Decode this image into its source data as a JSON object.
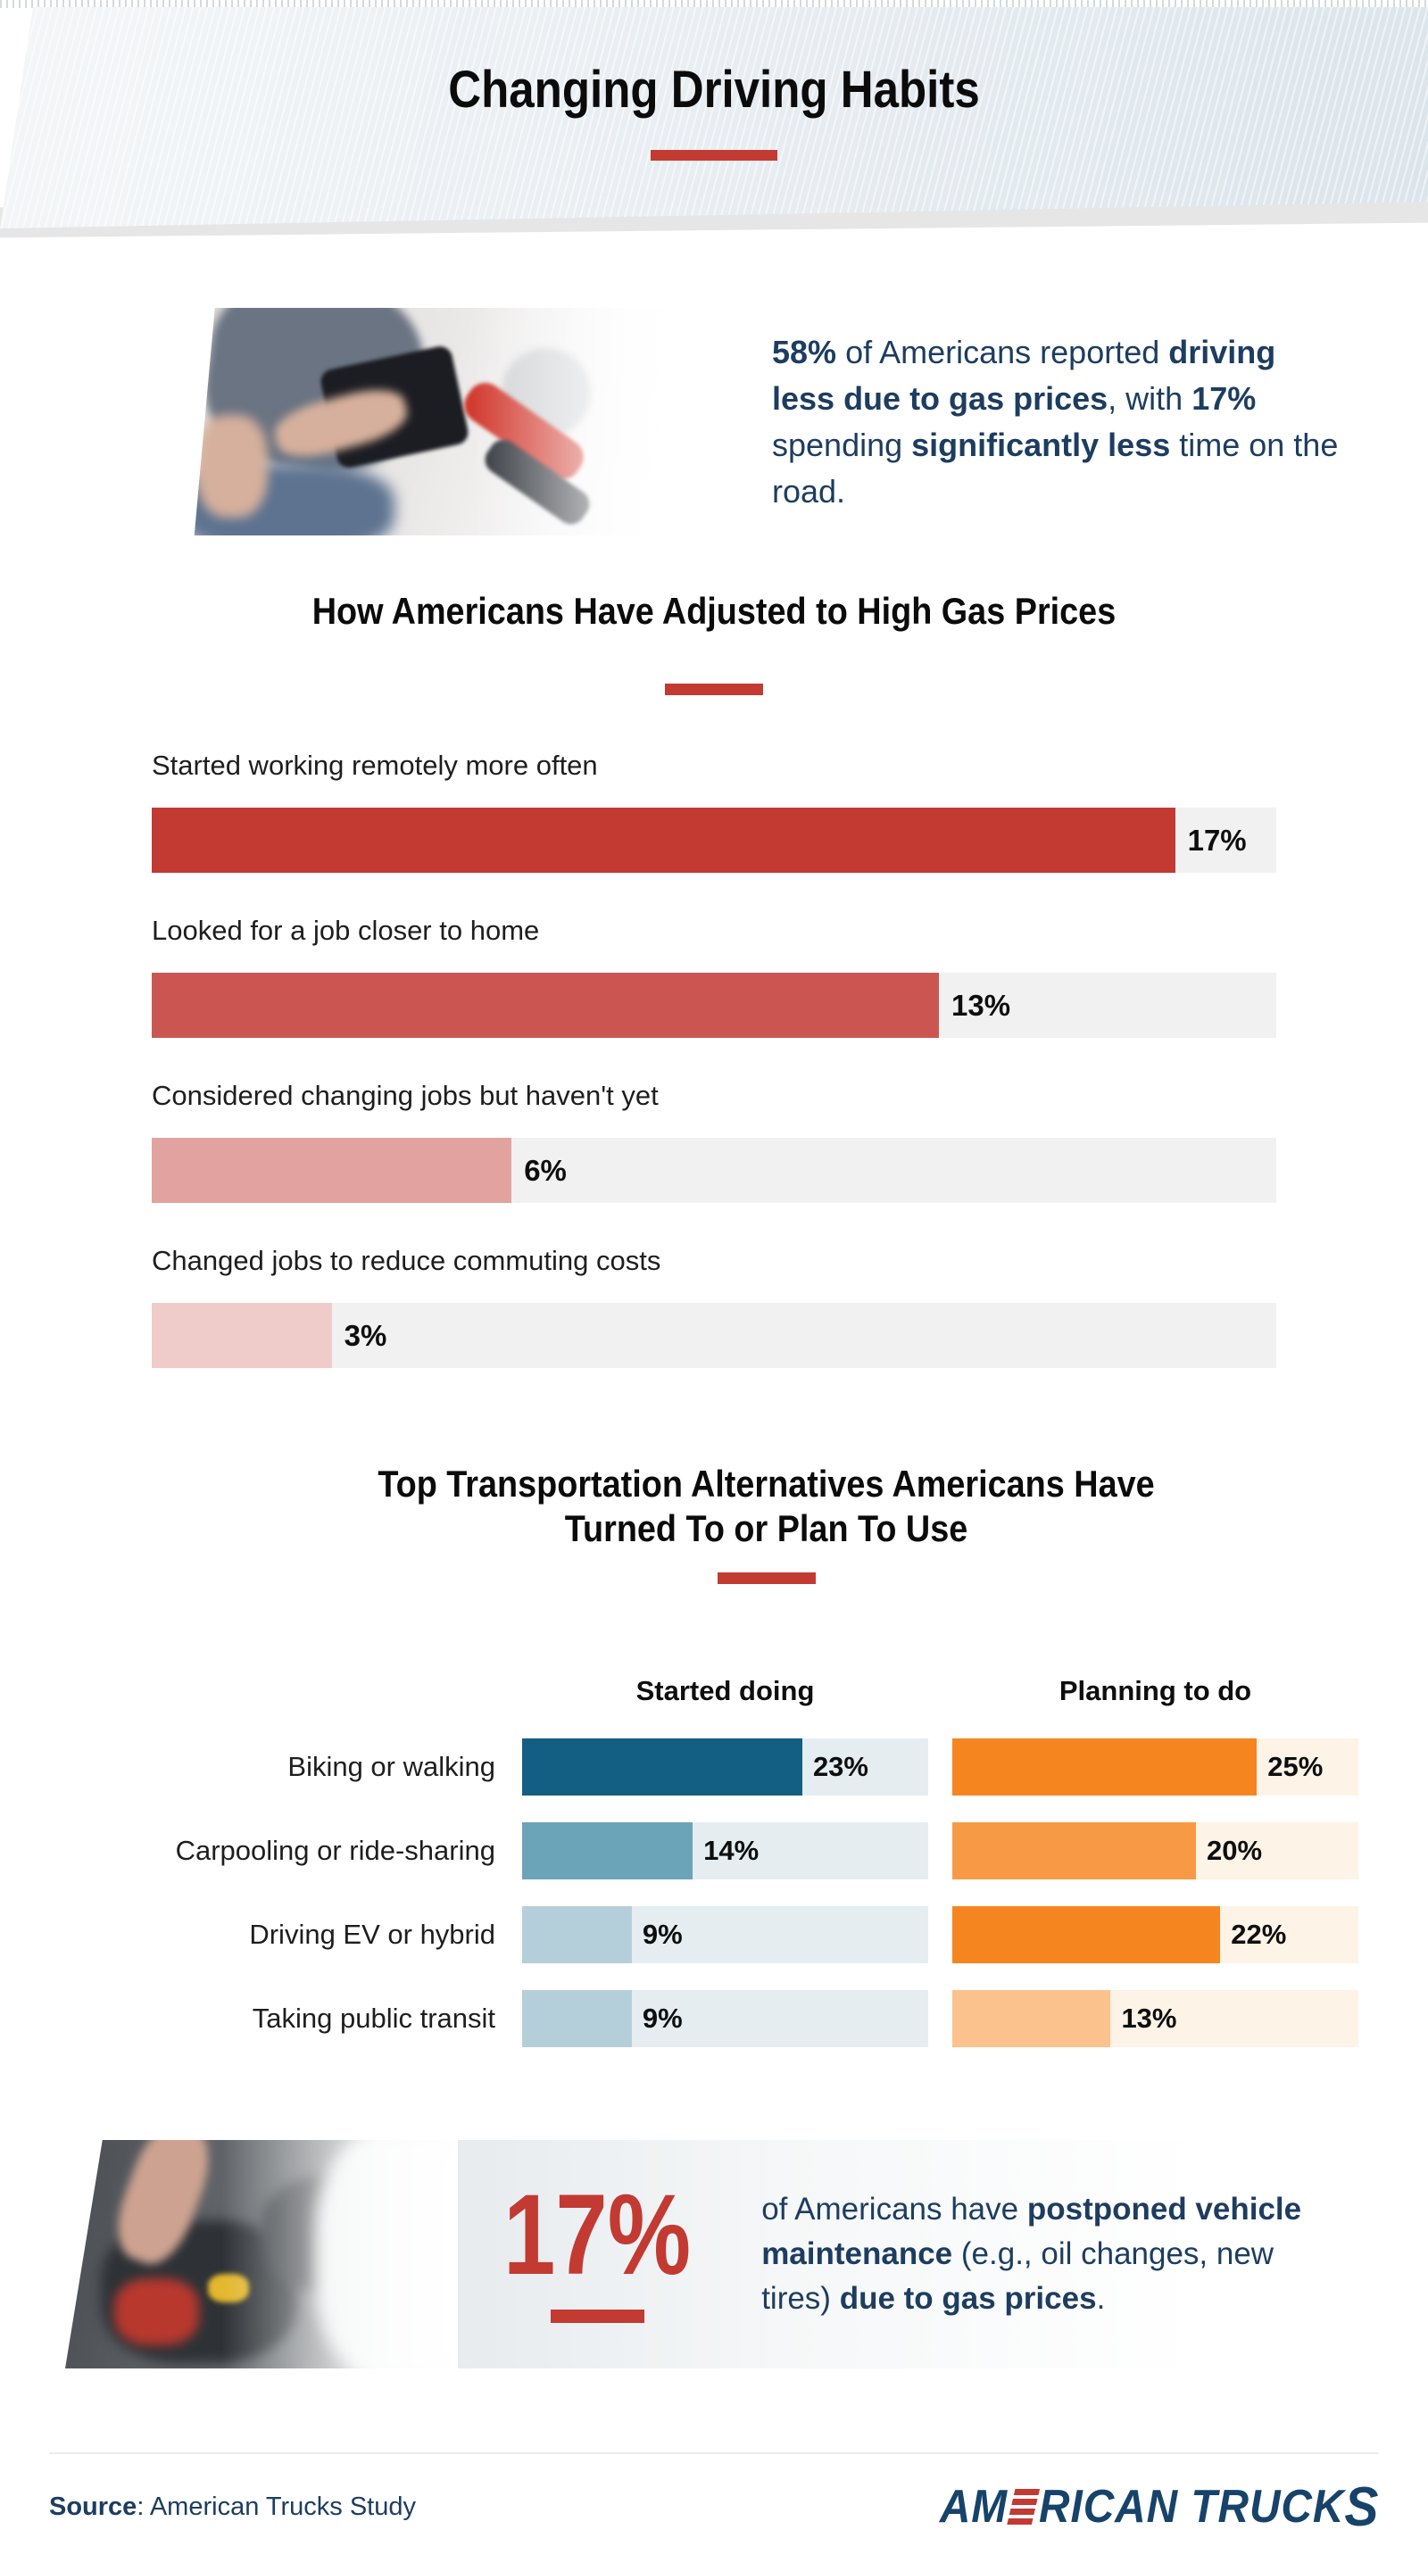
{
  "page": {
    "background": "#ffffff",
    "accent_color": "#c23a32",
    "navy_color": "#1d3d60"
  },
  "header": {
    "title": "Changing Driving Habits"
  },
  "intro_stat": {
    "photo": "person-holding-wallet-at-gas-pump",
    "segments": [
      {
        "t": "58%",
        "b": true
      },
      {
        "t": " of Americans reported ",
        "b": false
      },
      {
        "t": "driving less due to gas prices",
        "b": true
      },
      {
        "t": ", with ",
        "b": false
      },
      {
        "t": "17%",
        "b": true
      },
      {
        "t": " spending ",
        "b": false
      },
      {
        "t": "significantly less",
        "b": true
      },
      {
        "t": " time on the road.",
        "b": false
      }
    ]
  },
  "chart_data": [
    {
      "type": "bar",
      "orientation": "horizontal",
      "title": "How Americans Have Adjusted to High Gas Prices",
      "categories": [
        "Started working remotely more often",
        "Looked for a job closer to home",
        "Considered changing jobs but haven't yet",
        "Changed jobs to reduce commuting costs"
      ],
      "values": [
        17,
        13,
        6,
        3
      ],
      "value_labels": [
        "17%",
        "13%",
        "6%",
        "3%"
      ],
      "bar_colors": [
        "#c23a32",
        "#cb5651",
        "#e2a3a0",
        "#efcbca"
      ],
      "bar_width_pct": [
        91,
        70,
        32,
        16
      ],
      "track_color": "#f1f1f2",
      "xlim": [
        0,
        18.6
      ],
      "value_label_position": "right-of-bar",
      "grid": false
    },
    {
      "type": "bar",
      "orientation": "horizontal",
      "grouped": true,
      "title": "Top Transportation Alternatives Americans Have Turned To or Plan To Use",
      "title_lines": [
        "Top Transportation Alternatives Americans Have",
        "Turned To or Plan To Use"
      ],
      "categories": [
        "Biking or walking",
        "Carpooling or ride-sharing",
        "Driving EV or hybrid",
        "Taking public transit"
      ],
      "xlim": [
        0,
        33.3
      ],
      "series": [
        {
          "name": "Started doing",
          "values": [
            23,
            14,
            9,
            9
          ],
          "value_labels": [
            "23%",
            "14%",
            "9%",
            "9%"
          ],
          "colors": [
            "#135e83",
            "#6ba3b8",
            "#b5cfda",
            "#b5cfda"
          ],
          "width_pct": [
            69,
            42,
            27,
            27
          ],
          "track_color": "#e5edf1"
        },
        {
          "name": "Planning to do",
          "values": [
            25,
            20,
            22,
            13
          ],
          "value_labels": [
            "25%",
            "20%",
            "22%",
            "13%"
          ],
          "colors": [
            "#f5861f",
            "#f89a45",
            "#f5861f",
            "#fbc28e"
          ],
          "width_pct": [
            75,
            60,
            66,
            39
          ],
          "track_color": "#fdf3e7"
        }
      ]
    }
  ],
  "maintenance_stat": {
    "photo": "mechanic-working-on-engine",
    "big_value": "17%",
    "segments": [
      {
        "t": "of Americans have ",
        "b": false
      },
      {
        "t": "postponed vehicle maintenance",
        "b": true
      },
      {
        "t": " (e.g., oil changes, new tires) ",
        "b": false
      },
      {
        "t": "due to gas prices",
        "b": true
      },
      {
        "t": ".",
        "b": false
      }
    ]
  },
  "footer": {
    "source_label": "Source",
    "source_text": ": American Trucks Study",
    "logo": {
      "alt": "AMERICAN TRUCKS",
      "part1": "AM",
      "part2": "RICAN TRUCK",
      "part3": "S"
    }
  }
}
